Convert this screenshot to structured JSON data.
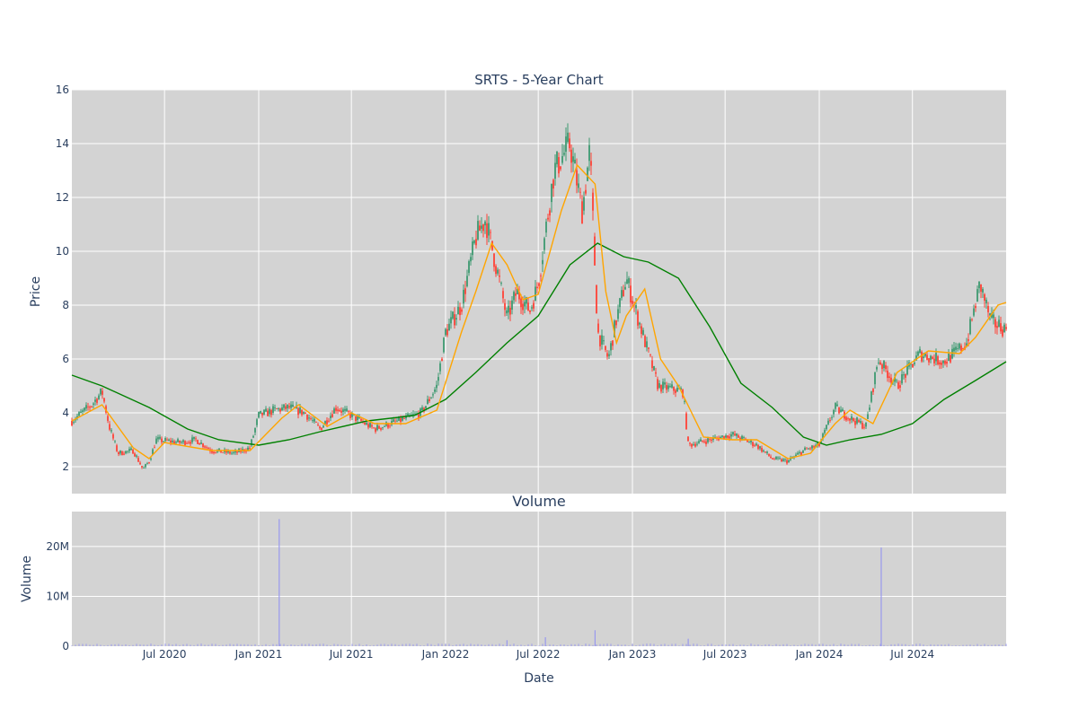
{
  "chart_data": [
    {
      "type": "candlestick",
      "title": "SRTS - 5-Year Chart",
      "xlabel": "",
      "ylabel": "Price",
      "ylim": [
        1,
        16
      ],
      "yticks": [
        2,
        4,
        6,
        8,
        10,
        12,
        14,
        16
      ],
      "grid": true,
      "colors": {
        "up": "#3d9970",
        "down": "#ff4136",
        "ma_short": "#ffa500",
        "ma_long": "#008000",
        "plot_bg": "#d3d3d3"
      },
      "x_range": [
        "2020-01-02",
        "2024-12-31"
      ],
      "price_path": [
        [
          "2020-01-02",
          3.7
        ],
        [
          "2020-02-10",
          4.3
        ],
        [
          "2020-03-01",
          4.8
        ],
        [
          "2020-03-15",
          3.5
        ],
        [
          "2020-04-01",
          2.5
        ],
        [
          "2020-05-01",
          2.6
        ],
        [
          "2020-05-20",
          1.9
        ],
        [
          "2020-06-01",
          2.2
        ],
        [
          "2020-06-15",
          3.0
        ],
        [
          "2020-08-01",
          2.9
        ],
        [
          "2020-09-01",
          3.0
        ],
        [
          "2020-10-01",
          2.6
        ],
        [
          "2020-11-15",
          2.5
        ],
        [
          "2020-12-15",
          2.7
        ],
        [
          "2021-01-01",
          3.9
        ],
        [
          "2021-02-01",
          4.1
        ],
        [
          "2021-03-01",
          4.2
        ],
        [
          "2021-04-01",
          4.0
        ],
        [
          "2021-05-01",
          3.4
        ],
        [
          "2021-06-01",
          4.2
        ],
        [
          "2021-07-01",
          3.9
        ],
        [
          "2021-08-15",
          3.4
        ],
        [
          "2021-10-01",
          3.7
        ],
        [
          "2021-11-15",
          4.0
        ],
        [
          "2021-12-15",
          5.0
        ],
        [
          "2022-01-01",
          7.0
        ],
        [
          "2022-02-01",
          8.0
        ],
        [
          "2022-03-01",
          10.5
        ],
        [
          "2022-03-20",
          11.2
        ],
        [
          "2022-04-15",
          9.0
        ],
        [
          "2022-05-01",
          7.5
        ],
        [
          "2022-05-20",
          8.5
        ],
        [
          "2022-06-15",
          7.8
        ],
        [
          "2022-07-01",
          8.8
        ],
        [
          "2022-08-01",
          13.0
        ],
        [
          "2022-09-01",
          14.0
        ],
        [
          "2022-09-25",
          11.5
        ],
        [
          "2022-10-10",
          13.8
        ],
        [
          "2022-10-25",
          7.0
        ],
        [
          "2022-11-15",
          6.0
        ],
        [
          "2022-12-01",
          7.5
        ],
        [
          "2022-12-20",
          9.0
        ],
        [
          "2023-01-20",
          7.0
        ],
        [
          "2023-02-20",
          5.0
        ],
        [
          "2023-04-10",
          4.8
        ],
        [
          "2023-04-20",
          2.8
        ],
        [
          "2023-06-01",
          3.0
        ],
        [
          "2023-07-15",
          3.2
        ],
        [
          "2023-09-01",
          2.8
        ],
        [
          "2023-10-01",
          2.3
        ],
        [
          "2023-11-01",
          2.2
        ],
        [
          "2023-12-01",
          2.6
        ],
        [
          "2024-01-01",
          2.8
        ],
        [
          "2024-02-01",
          4.2
        ],
        [
          "2024-03-01",
          3.8
        ],
        [
          "2024-04-01",
          3.5
        ],
        [
          "2024-04-25",
          6.0
        ],
        [
          "2024-06-01",
          5.0
        ],
        [
          "2024-07-15",
          6.2
        ],
        [
          "2024-09-01",
          5.9
        ],
        [
          "2024-10-15",
          6.6
        ],
        [
          "2024-11-10",
          8.8
        ],
        [
          "2024-12-01",
          7.4
        ],
        [
          "2024-12-31",
          7.1
        ]
      ],
      "ma_short": [
        [
          "2020-01-02",
          3.7
        ],
        [
          "2020-03-01",
          4.3
        ],
        [
          "2020-05-01",
          2.7
        ],
        [
          "2020-06-01",
          2.3
        ],
        [
          "2020-07-01",
          2.9
        ],
        [
          "2020-10-01",
          2.6
        ],
        [
          "2020-12-15",
          2.6
        ],
        [
          "2021-02-15",
          3.8
        ],
        [
          "2021-03-20",
          4.3
        ],
        [
          "2021-05-15",
          3.5
        ],
        [
          "2021-07-01",
          4.0
        ],
        [
          "2021-08-15",
          3.6
        ],
        [
          "2021-10-15",
          3.6
        ],
        [
          "2021-12-15",
          4.1
        ],
        [
          "2022-02-01",
          7.0
        ],
        [
          "2022-03-01",
          8.5
        ],
        [
          "2022-04-01",
          10.3
        ],
        [
          "2022-05-01",
          9.5
        ],
        [
          "2022-06-01",
          8.2
        ],
        [
          "2022-07-01",
          8.4
        ],
        [
          "2022-08-15",
          11.5
        ],
        [
          "2022-09-15",
          13.2
        ],
        [
          "2022-10-20",
          12.5
        ],
        [
          "2022-11-10",
          8.5
        ],
        [
          "2022-12-01",
          6.6
        ],
        [
          "2022-12-20",
          7.6
        ],
        [
          "2023-01-25",
          8.6
        ],
        [
          "2023-02-25",
          6.0
        ],
        [
          "2023-04-01",
          5.0
        ],
        [
          "2023-05-20",
          3.1
        ],
        [
          "2023-07-15",
          3.0
        ],
        [
          "2023-09-01",
          3.0
        ],
        [
          "2023-11-01",
          2.3
        ],
        [
          "2023-12-15",
          2.5
        ],
        [
          "2024-02-01",
          3.6
        ],
        [
          "2024-03-01",
          4.1
        ],
        [
          "2024-04-15",
          3.6
        ],
        [
          "2024-06-01",
          5.5
        ],
        [
          "2024-08-01",
          6.3
        ],
        [
          "2024-10-01",
          6.2
        ],
        [
          "2024-11-01",
          6.8
        ],
        [
          "2024-12-15",
          8.0
        ],
        [
          "2024-12-31",
          8.1
        ]
      ],
      "ma_long": [
        [
          "2020-01-02",
          5.4
        ],
        [
          "2020-03-01",
          5.0
        ],
        [
          "2020-06-01",
          4.2
        ],
        [
          "2020-08-15",
          3.4
        ],
        [
          "2020-10-15",
          3.0
        ],
        [
          "2021-01-01",
          2.8
        ],
        [
          "2021-03-01",
          3.0
        ],
        [
          "2021-05-01",
          3.3
        ],
        [
          "2021-08-01",
          3.7
        ],
        [
          "2021-11-01",
          3.9
        ],
        [
          "2022-01-01",
          4.5
        ],
        [
          "2022-03-01",
          5.5
        ],
        [
          "2022-05-01",
          6.6
        ],
        [
          "2022-07-01",
          7.6
        ],
        [
          "2022-09-01",
          9.5
        ],
        [
          "2022-10-25",
          10.3
        ],
        [
          "2022-12-15",
          9.8
        ],
        [
          "2023-02-01",
          9.6
        ],
        [
          "2023-04-01",
          9.0
        ],
        [
          "2023-06-01",
          7.2
        ],
        [
          "2023-08-01",
          5.1
        ],
        [
          "2023-10-01",
          4.2
        ],
        [
          "2023-12-01",
          3.1
        ],
        [
          "2024-01-15",
          2.8
        ],
        [
          "2024-03-01",
          3.0
        ],
        [
          "2024-05-01",
          3.2
        ],
        [
          "2024-07-01",
          3.6
        ],
        [
          "2024-09-01",
          4.5
        ],
        [
          "2024-11-01",
          5.2
        ],
        [
          "2024-12-31",
          5.9
        ]
      ]
    },
    {
      "type": "bar",
      "title": "Volume",
      "xlabel": "Date",
      "ylabel": "Volume",
      "ylim": [
        0,
        27000000
      ],
      "yticks": [
        0,
        10000000,
        20000000
      ],
      "ytick_labels": [
        "0",
        "10M",
        "20M"
      ],
      "xticks": [
        "2020-07-01",
        "2021-01-01",
        "2021-07-01",
        "2022-01-01",
        "2022-07-01",
        "2023-01-01",
        "2023-07-01",
        "2024-01-01",
        "2024-07-01"
      ],
      "xtick_labels": [
        "Jul 2020",
        "Jan 2021",
        "Jul 2021",
        "Jan 2022",
        "Jul 2022",
        "Jan 2023",
        "Jul 2023",
        "Jan 2024",
        "Jul 2024"
      ],
      "grid": true,
      "colors": {
        "bar": "#9999ee"
      },
      "spikes": [
        [
          "2021-02-10",
          25500000
        ],
        [
          "2024-05-01",
          19800000
        ],
        [
          "2022-10-20",
          3200000
        ],
        [
          "2022-07-15",
          1800000
        ],
        [
          "2023-04-20",
          1500000
        ],
        [
          "2022-05-01",
          1200000
        ]
      ],
      "baseline_volume": 300000
    }
  ]
}
